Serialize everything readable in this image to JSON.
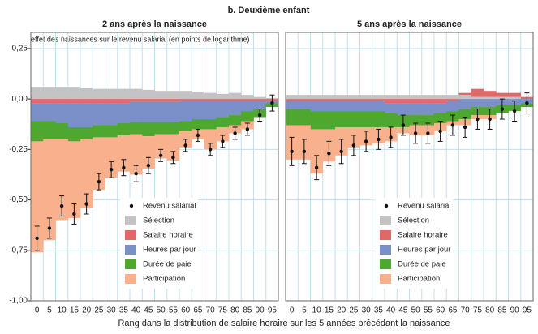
{
  "title": "b. Deuxième enfant",
  "ylabel": "effet des naissances sur le revenu salarial (en points de logarithme)",
  "xlabel": "Rang dans la distribution de salaire horaire sur les 5 années précédant la naissance",
  "chart_data": [
    {
      "type": "bar",
      "stacked": true,
      "subtitle": "2 ans après la naissance",
      "grid": true,
      "categories": [
        0,
        5,
        10,
        15,
        20,
        25,
        30,
        35,
        40,
        45,
        50,
        55,
        60,
        65,
        70,
        75,
        80,
        85,
        90,
        95
      ],
      "ylim": [
        -1,
        0.33
      ],
      "yticks": [
        {
          "value": 0.25,
          "label": "0,25"
        },
        {
          "value": 0,
          "label": "0,00"
        },
        {
          "value": -0.25,
          "label": "-0,25"
        },
        {
          "value": -0.5,
          "label": "-0,50"
        },
        {
          "value": -0.75,
          "label": "-0,75"
        },
        {
          "value": -1,
          "label": "-1,00"
        }
      ],
      "series": [
        {
          "name": "Sélection",
          "color": "#c3c3c3",
          "values": [
            0.06,
            0.06,
            0.06,
            0.06,
            0.055,
            0.05,
            0.05,
            0.05,
            0.05,
            0.045,
            0.04,
            0.04,
            0.04,
            0.035,
            0.03,
            0.025,
            0.03,
            0.02,
            0.01,
            0.005
          ]
        },
        {
          "name": "Salaire horaire",
          "color": "#e06868",
          "values": [
            -0.02,
            -0.02,
            -0.02,
            -0.02,
            -0.02,
            -0.02,
            -0.02,
            -0.02,
            -0.015,
            -0.015,
            -0.015,
            -0.015,
            -0.01,
            -0.01,
            -0.01,
            -0.01,
            -0.01,
            -0.01,
            -0.01,
            -0.01
          ]
        },
        {
          "name": "Heures par jour",
          "color": "#7b8fc9",
          "values": [
            -0.09,
            -0.09,
            -0.1,
            -0.12,
            -0.12,
            -0.11,
            -0.11,
            -0.1,
            -0.1,
            -0.1,
            -0.1,
            -0.1,
            -0.1,
            -0.09,
            -0.09,
            -0.08,
            -0.07,
            -0.05,
            -0.04,
            -0.01
          ]
        },
        {
          "name": "Durée de paie",
          "color": "#4ea72e",
          "values": [
            -0.1,
            -0.09,
            -0.08,
            -0.07,
            -0.06,
            -0.06,
            -0.06,
            -0.06,
            -0.06,
            -0.07,
            -0.06,
            -0.06,
            -0.05,
            -0.05,
            -0.05,
            -0.05,
            -0.05,
            -0.05,
            -0.04,
            -0.02
          ]
        },
        {
          "name": "Participation",
          "color": "#f9b18d",
          "values": [
            -0.55,
            -0.5,
            -0.4,
            -0.38,
            -0.34,
            -0.26,
            -0.2,
            -0.18,
            -0.2,
            -0.16,
            -0.12,
            -0.13,
            -0.08,
            -0.05,
            -0.1,
            -0.07,
            -0.04,
            -0.04,
            0,
            0
          ]
        }
      ],
      "points": {
        "name": "Revenu salarial",
        "color": "#111111",
        "values": [
          -0.69,
          -0.64,
          -0.53,
          -0.57,
          -0.52,
          -0.41,
          -0.35,
          -0.34,
          -0.37,
          -0.33,
          -0.28,
          -0.29,
          -0.23,
          -0.18,
          -0.25,
          -0.21,
          -0.17,
          -0.15,
          -0.08,
          -0.02
        ],
        "errors": [
          0.06,
          0.05,
          0.05,
          0.05,
          0.05,
          0.04,
          0.04,
          0.04,
          0.04,
          0.04,
          0.03,
          0.03,
          0.03,
          0.03,
          0.03,
          0.03,
          0.03,
          0.03,
          0.03,
          0.04
        ]
      }
    },
    {
      "type": "bar",
      "stacked": true,
      "subtitle": "5 ans après la naissance",
      "grid": true,
      "categories": [
        0,
        5,
        10,
        15,
        20,
        25,
        30,
        35,
        40,
        45,
        50,
        55,
        60,
        65,
        70,
        75,
        80,
        85,
        90,
        95
      ],
      "ylim": [
        -1,
        0.33
      ],
      "yticks": [
        0.25,
        0,
        -0.25,
        -0.5,
        -0.75,
        -1
      ],
      "series": [
        {
          "name": "Sélection",
          "color": "#c3c3c3",
          "values": [
            0.02,
            0.02,
            0.02,
            0.02,
            0.02,
            0.02,
            0.02,
            0.02,
            0.02,
            0.02,
            0.02,
            0.02,
            0.02,
            0.02,
            0.02,
            0.01,
            0.01,
            0.01,
            0.01,
            0
          ]
        },
        {
          "name": "Salaire horaire",
          "color": "#e06868",
          "values": [
            -0.01,
            -0.01,
            -0.01,
            -0.01,
            -0.01,
            -0.01,
            -0.01,
            -0.01,
            -0.02,
            -0.02,
            -0.02,
            -0.02,
            -0.02,
            -0.01,
            0.01,
            0.04,
            0.03,
            0.02,
            0.02,
            0.01
          ]
        },
        {
          "name": "Heures par jour",
          "color": "#7b8fc9",
          "values": [
            -0.04,
            -0.04,
            -0.05,
            -0.05,
            -0.05,
            -0.05,
            -0.05,
            -0.05,
            -0.05,
            -0.06,
            -0.06,
            -0.06,
            -0.05,
            -0.05,
            -0.05,
            -0.04,
            -0.04,
            -0.03,
            -0.03,
            -0.02
          ]
        },
        {
          "name": "Durée de paie",
          "color": "#4ea72e",
          "values": [
            -0.08,
            -0.08,
            -0.09,
            -0.09,
            -0.08,
            -0.08,
            -0.08,
            -0.08,
            -0.07,
            -0.06,
            -0.05,
            -0.05,
            -0.05,
            -0.05,
            -0.05,
            -0.04,
            -0.04,
            -0.04,
            -0.03,
            -0.02
          ]
        },
        {
          "name": "Participation",
          "color": "#f9b18d",
          "values": [
            -0.17,
            -0.17,
            -0.22,
            -0.16,
            -0.14,
            -0.1,
            -0.09,
            -0.08,
            -0.07,
            -0.03,
            -0.05,
            -0.05,
            -0.04,
            -0.02,
            -0.03,
            -0.02,
            -0.02,
            0,
            0,
            0
          ]
        }
      ],
      "points": {
        "name": "Revenu salarial",
        "color": "#111111",
        "values": [
          -0.26,
          -0.26,
          -0.34,
          -0.27,
          -0.26,
          -0.23,
          -0.21,
          -0.2,
          -0.19,
          -0.13,
          -0.17,
          -0.17,
          -0.16,
          -0.13,
          -0.14,
          -0.1,
          -0.1,
          -0.05,
          -0.06,
          -0.02
        ],
        "errors": [
          0.07,
          0.06,
          0.06,
          0.06,
          0.06,
          0.05,
          0.05,
          0.05,
          0.05,
          0.05,
          0.05,
          0.05,
          0.05,
          0.05,
          0.05,
          0.05,
          0.05,
          0.05,
          0.05,
          0.05
        ]
      }
    }
  ]
}
